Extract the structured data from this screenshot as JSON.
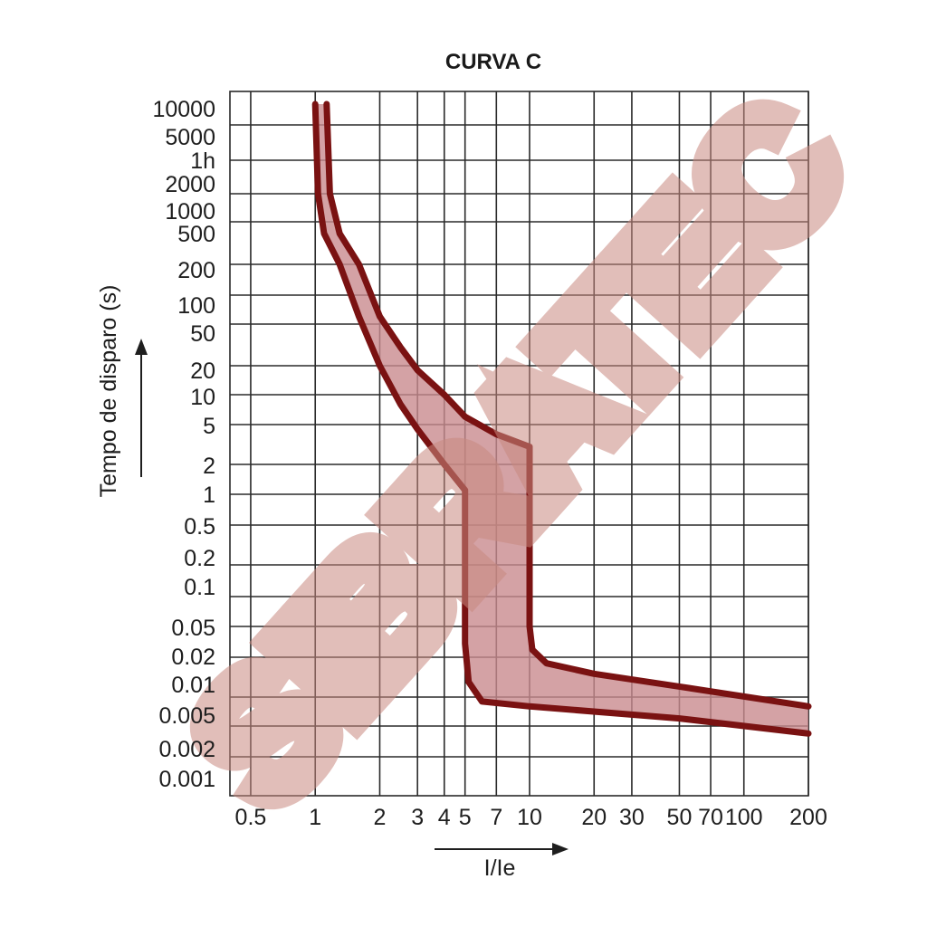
{
  "chart_data": {
    "type": "line",
    "title": "CURVA C",
    "xlabel": "I/Ie",
    "ylabel": "Tempo de disparo (s)",
    "x_scale": "log",
    "xlim": [
      0.4,
      200
    ],
    "x_ticks": [
      {
        "value": 0.5,
        "label": "0.5"
      },
      {
        "value": 1,
        "label": "1"
      },
      {
        "value": 2,
        "label": "2"
      },
      {
        "value": 3,
        "label": "3"
      },
      {
        "value": 4,
        "label": "4"
      },
      {
        "value": 5,
        "label": "5"
      },
      {
        "value": 7,
        "label": "7"
      },
      {
        "value": 10,
        "label": "10"
      },
      {
        "value": 20,
        "label": "20"
      },
      {
        "value": 30,
        "label": "30"
      },
      {
        "value": 50,
        "label": "50"
      },
      {
        "value": 70,
        "label": "70"
      },
      {
        "value": 100,
        "label": "100"
      },
      {
        "value": 200,
        "label": "200"
      }
    ],
    "y_ticks": [
      "10000",
      "5000",
      "1h",
      "2000",
      "1000",
      "500",
      "200",
      "100",
      "50",
      "20",
      "10",
      "5",
      "2",
      "1",
      "0.5",
      "0.2",
      "0.1",
      "0.05",
      "0.02",
      "0.01",
      "0.005",
      "0.002",
      "0.001"
    ],
    "grid": true,
    "series": [
      {
        "points": [
          [
            1.0,
            10000
          ],
          [
            1.03,
            2000
          ],
          [
            1.1,
            500
          ],
          [
            1.3,
            200
          ],
          [
            1.6,
            60
          ],
          [
            2.0,
            20
          ],
          [
            2.5,
            8
          ],
          [
            3.0,
            4.5
          ],
          [
            4.0,
            2
          ],
          [
            5.0,
            1.1
          ],
          [
            5.0,
            0.1
          ],
          [
            5.0,
            0.03
          ],
          [
            5.2,
            0.013
          ],
          [
            6.0,
            0.009
          ],
          [
            10,
            0.008
          ],
          [
            50,
            0.006
          ],
          [
            200,
            0.004
          ]
        ]
      },
      {
        "points": [
          [
            1.13,
            10000
          ],
          [
            1.17,
            2000
          ],
          [
            1.3,
            500
          ],
          [
            1.6,
            200
          ],
          [
            2.0,
            60
          ],
          [
            2.5,
            30
          ],
          [
            3.0,
            18
          ],
          [
            4.0,
            10
          ],
          [
            5.0,
            6
          ],
          [
            7.0,
            4
          ],
          [
            10,
            3
          ],
          [
            10,
            0.5
          ],
          [
            10,
            0.05
          ],
          [
            10.3,
            0.025
          ],
          [
            12,
            0.018
          ],
          [
            20,
            0.015
          ],
          [
            50,
            0.012
          ],
          [
            200,
            0.008
          ]
        ]
      }
    ],
    "fill_between_series": true,
    "colors": {
      "curve": "#7a1212",
      "band": "#c98b8e",
      "grid": "#2a2a2a",
      "watermark": "#c98a80"
    },
    "watermark": "SIBRATEC"
  }
}
